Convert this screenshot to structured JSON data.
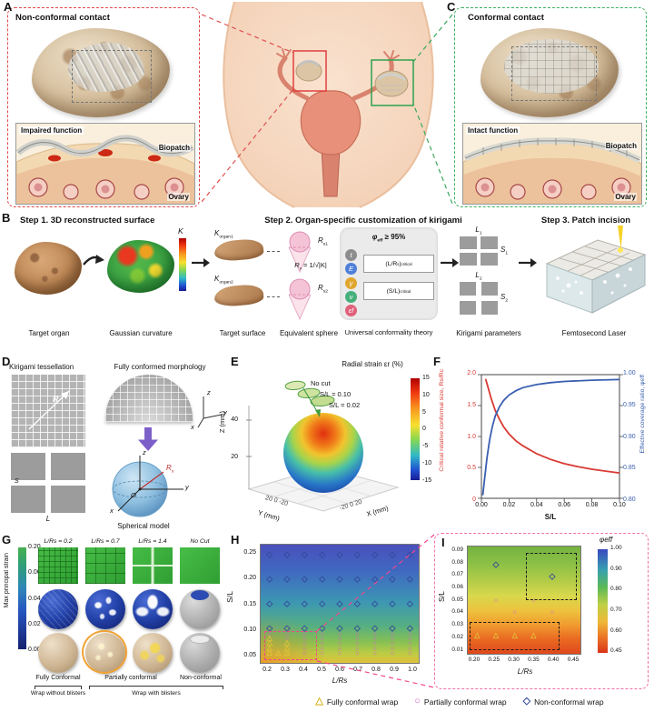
{
  "panel_letters": {
    "a": "A",
    "b": "B",
    "c": "C",
    "d": "D",
    "e": "E",
    "f": "F",
    "g": "G",
    "h": "H",
    "i": "I"
  },
  "panelA": {
    "title": "Non-conformal contact",
    "inset_title": "Impaired function",
    "biopatch": "Biopatch",
    "ovary": "Ovary"
  },
  "panelC": {
    "title": "Conformal contact",
    "inset_title": "Intact function",
    "biopatch": "Biopatch",
    "ovary": "Ovary"
  },
  "panelB": {
    "step1": "Step 1. 3D reconstructed surface",
    "step2": "Step 2. Organ-specific customization of kirigami",
    "step3": "Step 3. Patch incision",
    "caption_target_organ": "Target organ",
    "caption_gaussian": "Gaussian curvature",
    "caption_target_surface": "Target surface",
    "caption_equivalent_sphere": "Equivalent sphere",
    "caption_theory": "Universal conformality theory",
    "caption_kirigami": "Kirigami parameters",
    "caption_laser": "Femtosecond Laser",
    "curvature_symbol": "K",
    "korgan1_base": "K",
    "korgan1_sub": "organ1",
    "korgan2_base": "K",
    "korgan2_sub": "organ2",
    "rs1_base": "R",
    "rs1_sub": "s1",
    "rs2_base": "R",
    "rs2_sub": "s2",
    "eq_base": "R",
    "eq_sub": "s",
    "eq_rest": " = 1/√|K|",
    "theory_params": [
      {
        "symbol": "t",
        "color": "#8d8d8d"
      },
      {
        "symbol": "E",
        "color": "#4f7fd9"
      },
      {
        "symbol": "γ",
        "color": "#e0a62e"
      },
      {
        "symbol": "ν",
        "color": "#46b07c"
      },
      {
        "symbol": "εf",
        "color": "#e0607a"
      }
    ],
    "phi_base": "φ",
    "phi_sub": "eff",
    "phi_rest": " ≥ 95%",
    "crit1_pre": "(L/R",
    "crit1_presub": "s",
    "crit1_post": ")",
    "crit1_postsub": "critical",
    "crit2_pre": "(S/L",
    "crit2_post": ")",
    "crit2_postsub": "critical",
    "L1_base": "L",
    "L1_sub": "1",
    "S1_base": "S",
    "S1_sub": "1",
    "L2_base": "L",
    "L2_sub": "2",
    "S2_base": "S",
    "S2_sub": "2"
  },
  "panelD": {
    "tessellation_title": "Kirigami tessellation",
    "morphology_title": "Fully conformed morphology",
    "model_title": "Spherical model",
    "label_R": "R",
    "label_S": "S",
    "label_L": "L",
    "axis_x": "x",
    "axis_y": "y",
    "axis_z": "z",
    "rs_base": "R",
    "rs_sub": "s",
    "origin": "O"
  },
  "panelG": {
    "colorbar_label": "Max principal strain",
    "colorbar_ticks": [
      "0.20",
      "0.06",
      "0.04",
      "0.02",
      "0.00"
    ],
    "col_headers": [
      "L/Rs = 0.2",
      "L/Rs = 0.7",
      "L/Rs = 1.4",
      "No Cut"
    ],
    "bottom_labels": [
      "Fully Conformal",
      "Partially conformal",
      "Non-conformal"
    ],
    "wrap_labels": [
      "Wrap without blisters",
      "Wrap with blisters"
    ]
  },
  "legend": {
    "items": [
      {
        "shape": "triangle",
        "label": "Fully conformal wrap",
        "color": "#d8b92a"
      },
      {
        "shape": "circle",
        "label": "Partially conformal wrap",
        "color": "#d964c8"
      },
      {
        "shape": "diamond",
        "label": "Non-conformal wrap",
        "color": "#35479e"
      }
    ]
  },
  "chart_data": [
    {
      "id": "E",
      "type": "scatter",
      "title": "Radial strain εr (%)",
      "colorbar_ticks": [
        "15",
        "10",
        "5",
        "0",
        "-5",
        "-10",
        "-15"
      ],
      "colorbar_range": [
        15,
        -15
      ],
      "legend": [
        "No cut",
        "S/L = 0.10",
        "S/L = 0.02"
      ],
      "zlabel": "Z (mm)",
      "xlabel": "X (mm)",
      "ylabel": "Y (mm)",
      "zticks": [
        "40",
        "20"
      ],
      "xticks": [
        "-20",
        "0",
        "20"
      ],
      "yticks": [
        "20",
        "0",
        "-20"
      ],
      "x_range": [
        -20,
        20
      ],
      "y_range": [
        -20,
        20
      ]
    },
    {
      "id": "F",
      "type": "line",
      "xlabel": "S/L",
      "ylabel_left": "Critical relative conformal size, Rs/Rc",
      "ylabel_right": "Effective coverage ratio, φeff",
      "x_range": [
        0,
        0.1
      ],
      "ylim_left": [
        0,
        2.0
      ],
      "ylim_right": [
        0.8,
        1.0
      ],
      "xticks": [
        "0.00",
        "0.02",
        "0.04",
        "0.06",
        "0.08",
        "0.10"
      ],
      "yticks_left": [
        "2.0",
        "1.5",
        "1.0",
        "0.5",
        "0"
      ],
      "yticks_right": [
        "1.00",
        "0.95",
        "0.90",
        "0.85",
        "0.80"
      ],
      "series": [
        {
          "name": "Critical relative conformal size, Rs/Rc",
          "axis": "left",
          "color": "#d93a32",
          "points": [
            [
              0.003,
              1.93
            ],
            [
              0.005,
              1.78
            ],
            [
              0.007,
              1.62
            ],
            [
              0.01,
              1.42
            ],
            [
              0.013,
              1.28
            ],
            [
              0.016,
              1.16
            ],
            [
              0.02,
              1.04
            ],
            [
              0.025,
              0.93
            ],
            [
              0.03,
              0.85
            ],
            [
              0.04,
              0.72
            ],
            [
              0.05,
              0.63
            ],
            [
              0.06,
              0.56
            ],
            [
              0.07,
              0.51
            ],
            [
              0.08,
              0.47
            ],
            [
              0.09,
              0.44
            ],
            [
              0.1,
              0.41
            ]
          ]
        },
        {
          "name": "Effective coverage ratio, φeff",
          "axis": "right",
          "color": "#3a5fb0",
          "points": [
            [
              0.001,
              0.805
            ],
            [
              0.002,
              0.825
            ],
            [
              0.004,
              0.865
            ],
            [
              0.006,
              0.895
            ],
            [
              0.008,
              0.917
            ],
            [
              0.01,
              0.933
            ],
            [
              0.013,
              0.948
            ],
            [
              0.016,
              0.958
            ],
            [
              0.02,
              0.967
            ],
            [
              0.025,
              0.974
            ],
            [
              0.03,
              0.979
            ],
            [
              0.04,
              0.984
            ],
            [
              0.05,
              0.987
            ],
            [
              0.06,
              0.989
            ],
            [
              0.08,
              0.991
            ],
            [
              0.1,
              0.992
            ]
          ]
        }
      ]
    },
    {
      "id": "H",
      "type": "heatmap",
      "xlabel": "L/Rs",
      "ylabel": "S/L",
      "x_range": [
        0.15,
        1.05
      ],
      "y_range": [
        0.03,
        0.27
      ],
      "xticks": [
        "0.2",
        "0.3",
        "0.4",
        "0.5",
        "0.6",
        "0.7",
        "0.8",
        "0.9",
        "1.0"
      ],
      "yticks": [
        "0.25",
        "0.20",
        "0.15",
        "0.10",
        "0.05"
      ],
      "markers": [
        {
          "shape": "diamond",
          "grid": {
            "x": [
              0.2,
              0.3,
              0.4,
              0.5,
              0.6,
              0.7,
              0.8,
              0.9,
              1.0
            ],
            "y": [
              0.1,
              0.15,
              0.2,
              0.25
            ]
          }
        },
        {
          "shape": "circle",
          "grid": {
            "x": [
              0.4,
              0.5,
              0.6,
              0.7,
              0.8,
              0.9,
              1.0
            ],
            "y": [
              0.05,
              0.06,
              0.07,
              0.08,
              0.09
            ]
          }
        },
        {
          "shape": "circle",
          "points": [
            [
              0.3,
              0.08
            ],
            [
              0.3,
              0.09
            ],
            [
              0.2,
              0.09
            ]
          ]
        },
        {
          "shape": "triangle",
          "points": [
            [
              0.2,
              0.05
            ],
            [
              0.2,
              0.06
            ],
            [
              0.2,
              0.07
            ],
            [
              0.2,
              0.08
            ],
            [
              0.25,
              0.05
            ],
            [
              0.3,
              0.05
            ],
            [
              0.3,
              0.06
            ],
            [
              0.3,
              0.07
            ]
          ]
        }
      ],
      "boxes": [
        {
          "x0": 0.17,
          "x1": 0.47,
          "y0": 0.035,
          "y1": 0.095,
          "cls": "pink"
        }
      ]
    },
    {
      "id": "I",
      "type": "heatmap",
      "xlabel": "L/Rs",
      "ylabel": "S/L",
      "x_range": [
        0.175,
        0.475
      ],
      "y_range": [
        0.005,
        0.095
      ],
      "xticks": [
        "0.20",
        "0.25",
        "0.30",
        "0.35",
        "0.40",
        "0.45"
      ],
      "yticks": [
        "0.09",
        "0.08",
        "0.07",
        "0.06",
        "0.05",
        "0.04",
        "0.03",
        "0.02",
        "0.01"
      ],
      "colorbar": {
        "label": "φeff",
        "ticks": [
          "1.00",
          "0.90",
          "0.80",
          "0.70",
          "0.60",
          "0.45"
        ],
        "range": [
          1.0,
          0.45
        ]
      },
      "markers": [
        {
          "shape": "diamond",
          "points": [
            [
              0.25,
              0.08
            ],
            [
              0.4,
              0.07
            ]
          ]
        },
        {
          "shape": "circle",
          "points": [
            [
              0.25,
              0.05
            ],
            [
              0.35,
              0.05
            ],
            [
              0.3,
              0.04
            ],
            [
              0.4,
              0.04
            ]
          ]
        },
        {
          "shape": "triangle",
          "points": [
            [
              0.2,
              0.02
            ],
            [
              0.25,
              0.02
            ],
            [
              0.3,
              0.02
            ],
            [
              0.35,
              0.02
            ]
          ]
        }
      ],
      "boxes": [
        {
          "x0": 0.33,
          "x1": 0.465,
          "y0": 0.05,
          "y1": 0.09,
          "cls": "black"
        },
        {
          "x0": 0.18,
          "x1": 0.42,
          "y0": 0.008,
          "y1": 0.032,
          "cls": "black"
        }
      ]
    }
  ]
}
